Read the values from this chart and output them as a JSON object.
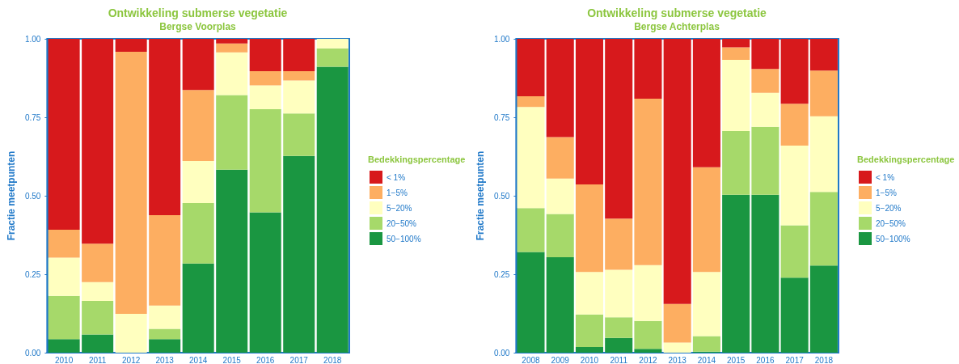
{
  "chart_data": [
    {
      "type": "bar",
      "title": "Ontwikkeling submerse vegetatie",
      "subtitle": "Bergse Voorplas",
      "ylabel": "Fractie meetpunten",
      "legend_title": "Bedekkingspercentage",
      "legend": "right",
      "stacked": true,
      "categories": [
        "2010",
        "2011",
        "2012",
        "2013",
        "2014",
        "2015",
        "2016",
        "2017",
        "2018"
      ],
      "ylim": [
        0,
        1
      ],
      "yticks": [
        {
          "value": 0,
          "label": "0.00"
        },
        {
          "value": 0.25,
          "label": "0.25"
        },
        {
          "value": 0.5,
          "label": "0.50"
        },
        {
          "value": 0.75,
          "label": "0.75"
        },
        {
          "value": 1,
          "label": "1.00"
        }
      ],
      "series": [
        {
          "name": "50−100%",
          "color": "#1a9641",
          "values": [
            0.043,
            0.058,
            0,
            0.043,
            0.284,
            0.583,
            0.447,
            0.627,
            0.911
          ]
        },
        {
          "name": "20−50%",
          "color": "#a6d96a",
          "values": [
            0.138,
            0.107,
            0,
            0.033,
            0.193,
            0.238,
            0.329,
            0.135,
            0.059
          ]
        },
        {
          "name": "5−20%",
          "color": "#ffffbf",
          "values": [
            0.122,
            0.06,
            0.124,
            0.074,
            0.134,
            0.136,
            0.076,
            0.105,
            0.03
          ]
        },
        {
          "name": "1−5%",
          "color": "#fdae61",
          "values": [
            0.089,
            0.122,
            0.835,
            0.288,
            0.226,
            0.028,
            0.045,
            0.03,
            0
          ]
        },
        {
          "name": "< 1%",
          "color": "#d7191c",
          "values": [
            0.608,
            0.653,
            0.041,
            0.562,
            0.163,
            0.015,
            0.103,
            0.103,
            0
          ]
        }
      ]
    },
    {
      "type": "bar",
      "title": "Ontwikkeling submerse vegetatie",
      "subtitle": "Bergse Achterplas",
      "ylabel": "Fractie meetpunten",
      "legend_title": "Bedekkingspercentage",
      "legend": "right",
      "stacked": true,
      "categories": [
        "2008",
        "2009",
        "2010",
        "2011",
        "2012",
        "2013",
        "2014",
        "2015",
        "2016",
        "2017",
        "2018"
      ],
      "ylim": [
        0,
        1
      ],
      "yticks": [
        {
          "value": 0,
          "label": "0.00"
        },
        {
          "value": 0.25,
          "label": "0.25"
        },
        {
          "value": 0.5,
          "label": "0.50"
        },
        {
          "value": 0.75,
          "label": "0.75"
        },
        {
          "value": 1,
          "label": "1.00"
        }
      ],
      "series": [
        {
          "name": "50−100%",
          "color": "#1a9641",
          "values": [
            0.321,
            0.304,
            0.018,
            0.047,
            0.012,
            0,
            0.003,
            0.503,
            0.503,
            0.239,
            0.278
          ]
        },
        {
          "name": "20−50%",
          "color": "#a6d96a",
          "values": [
            0.14,
            0.138,
            0.104,
            0.066,
            0.089,
            0,
            0.05,
            0.203,
            0.217,
            0.167,
            0.234
          ]
        },
        {
          "name": "5−20%",
          "color": "#ffffbf",
          "values": [
            0.322,
            0.113,
            0.135,
            0.151,
            0.178,
            0.032,
            0.204,
            0.227,
            0.108,
            0.254,
            0.241
          ]
        },
        {
          "name": "1−5%",
          "color": "#fdae61",
          "values": [
            0.034,
            0.132,
            0.279,
            0.163,
            0.53,
            0.123,
            0.334,
            0.04,
            0.076,
            0.133,
            0.146
          ]
        },
        {
          "name": "< 1%",
          "color": "#d7191c",
          "values": [
            0.183,
            0.313,
            0.464,
            0.573,
            0.191,
            0.845,
            0.409,
            0.027,
            0.096,
            0.207,
            0.101
          ]
        }
      ]
    }
  ]
}
